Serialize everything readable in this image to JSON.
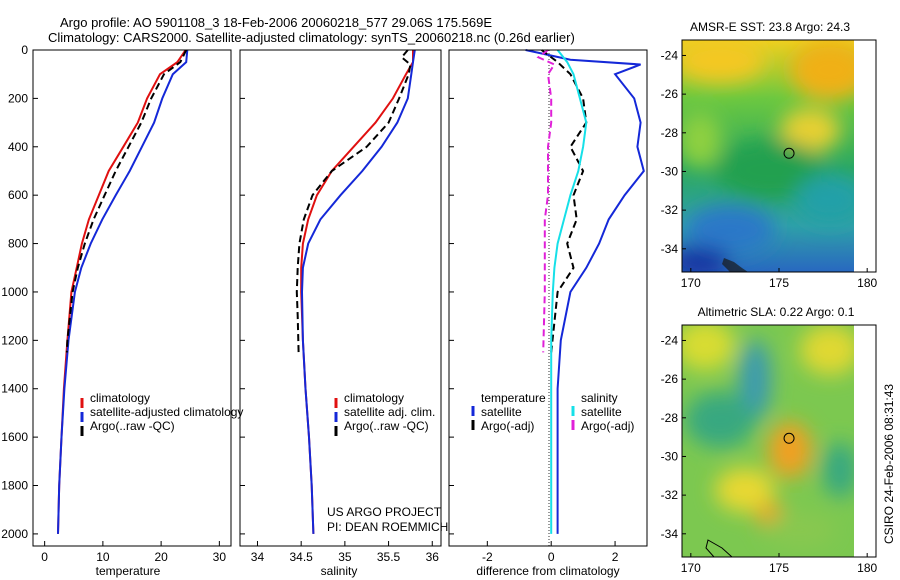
{
  "header": {
    "title_line1": "Argo profile: AO 5901108_3 18-Feb-2006 20060218_577 29.06S 175.569E",
    "title_line2": "Climatology: CARS2000. Satellite-adjusted climatology: synTS_20060218.nc (0.26d earlier)"
  },
  "side_label": "CSIRO 24-Feb-2006 08:31:43",
  "colors": {
    "climatology": "#e01010",
    "satellite": "#1428d8",
    "argo": "#000000",
    "sal_satellite": "#16e0e8",
    "sal_argo": "#e020d8"
  },
  "chart_data": [
    {
      "type": "line",
      "id": "temperature",
      "xlabel": "temperature",
      "xlim": [
        -2,
        32
      ],
      "ylim": [
        2050,
        0
      ],
      "xticks": [
        0,
        10,
        20,
        30
      ],
      "yticks": [
        0,
        200,
        400,
        600,
        800,
        1000,
        1200,
        1400,
        1600,
        1800,
        2000
      ],
      "legend": [
        "climatology",
        "satellite-adjusted climatology",
        "Argo(..raw -QC)"
      ],
      "series": [
        {
          "name": "climatology",
          "color": "#e01010",
          "x": [
            24.2,
            22.8,
            19.8,
            17.6,
            16.0,
            13.5,
            11.0,
            9.3,
            7.6,
            6.4,
            5.5,
            4.6,
            3.9,
            3.3,
            2.9,
            2.5,
            2.3
          ],
          "y": [
            0,
            50,
            100,
            200,
            300,
            400,
            500,
            600,
            700,
            800,
            900,
            1000,
            1200,
            1400,
            1600,
            1800,
            2000
          ]
        },
        {
          "name": "satellite-adjusted climatology",
          "color": "#1428d8",
          "x": [
            24.5,
            24.3,
            22.0,
            20.2,
            18.8,
            16.7,
            14.6,
            12.2,
            9.9,
            7.9,
            6.3,
            5.2,
            4.1,
            3.4,
            2.9,
            2.5,
            2.3
          ],
          "y": [
            0,
            50,
            100,
            200,
            300,
            400,
            500,
            600,
            700,
            800,
            900,
            1000,
            1200,
            1400,
            1600,
            1800,
            2000
          ]
        },
        {
          "name": "Argo(..raw -QC)",
          "color": "#000000",
          "dash": true,
          "x": [
            24.3,
            23.3,
            20.5,
            18.3,
            16.6,
            14.4,
            12.2,
            10.3,
            8.4,
            6.9,
            5.7,
            4.8,
            3.9,
            3.8
          ],
          "y": [
            0,
            50,
            100,
            200,
            300,
            400,
            500,
            600,
            700,
            800,
            900,
            1000,
            1200,
            1250
          ]
        }
      ]
    },
    {
      "type": "line",
      "id": "salinity",
      "xlabel": "salinity",
      "xlim": [
        33.8,
        36.1
      ],
      "ylim": [
        2050,
        0
      ],
      "xticks": [
        34,
        34.5,
        35,
        35.5,
        36
      ],
      "legend": [
        "climatology",
        "satellite adj. clim.",
        "Argo(..raw -QC)"
      ],
      "annotation": [
        "US ARGO PROJECT",
        "PI: DEAN ROEMMICH"
      ],
      "series": [
        {
          "name": "climatology",
          "color": "#e01010",
          "x": [
            35.78,
            35.78,
            35.7,
            35.55,
            35.35,
            35.1,
            34.85,
            34.68,
            34.58,
            34.52,
            34.5,
            34.5,
            34.52,
            34.55,
            34.59,
            34.62,
            34.64
          ],
          "y": [
            0,
            50,
            100,
            200,
            300,
            400,
            500,
            600,
            700,
            800,
            900,
            1000,
            1200,
            1400,
            1600,
            1800,
            2000
          ]
        },
        {
          "name": "satellite adj. clim.",
          "color": "#1428d8",
          "x": [
            35.8,
            35.78,
            35.76,
            35.72,
            35.6,
            35.42,
            35.2,
            34.95,
            34.72,
            34.58,
            34.52,
            34.51,
            34.52,
            34.55,
            34.59,
            34.62,
            34.64
          ],
          "y": [
            0,
            50,
            100,
            200,
            300,
            400,
            500,
            600,
            700,
            800,
            900,
            1000,
            1200,
            1400,
            1600,
            1800,
            2000
          ]
        },
        {
          "name": "Argo(..raw -QC)",
          "color": "#000000",
          "dash": true,
          "x": [
            35.72,
            35.65,
            35.75,
            35.73,
            35.62,
            35.5,
            35.25,
            34.85,
            34.63,
            34.53,
            34.48,
            34.46,
            34.45,
            34.46,
            34.47
          ],
          "y": [
            0,
            30,
            60,
            100,
            200,
            300,
            400,
            500,
            600,
            700,
            800,
            900,
            1000,
            1100,
            1250
          ]
        }
      ]
    },
    {
      "type": "line",
      "id": "difference",
      "xlabel": "difference from climatology",
      "xlim": [
        -3.2,
        3.0
      ],
      "ylim": [
        2050,
        0
      ],
      "xticks": [
        -2,
        0,
        2
      ],
      "legend_temperature": {
        "title": "temperature",
        "items": [
          "satellite",
          "Argo(-adj)"
        ]
      },
      "legend_salinity": {
        "title": "salinity",
        "items": [
          "satellite",
          "Argo(-adj)"
        ]
      },
      "series": [
        {
          "name": "temperature satellite",
          "color": "#1428d8",
          "x": [
            -0.8,
            0.6,
            2.8,
            2.0,
            2.6,
            2.8,
            2.7,
            2.9,
            2.3,
            1.8,
            1.5,
            1.1,
            0.6,
            0.3,
            0.2,
            0.2,
            0.2,
            0.2
          ],
          "y": [
            0,
            40,
            60,
            100,
            200,
            300,
            400,
            500,
            600,
            700,
            800,
            900,
            1000,
            1200,
            1400,
            1600,
            1800,
            2000
          ]
        },
        {
          "name": "temperature Argo(-adj)",
          "color": "#000000",
          "dash": true,
          "x": [
            -0.3,
            0.2,
            0.6,
            1.0,
            1.1,
            0.6,
            1.0,
            0.7,
            0.8,
            0.5,
            0.7,
            0.2,
            0.0
          ],
          "y": [
            0,
            50,
            100,
            200,
            300,
            400,
            500,
            600,
            700,
            800,
            900,
            1000,
            1250
          ]
        },
        {
          "name": "salinity satellite",
          "color": "#16e0e8",
          "x": [
            0.2,
            0.5,
            0.7,
            0.9,
            1.1,
            1.0,
            0.85,
            0.6,
            0.4,
            0.2,
            0.1,
            0.05,
            0.0,
            0.0,
            0.0,
            0.0,
            0.0
          ],
          "y": [
            0,
            50,
            100,
            200,
            300,
            400,
            500,
            600,
            700,
            800,
            900,
            1000,
            1200,
            1400,
            1600,
            1800,
            2000
          ]
        },
        {
          "name": "salinity Argo(-adj)",
          "color": "#e020d8",
          "dash": true,
          "x": [
            -0.1,
            -0.4,
            0.1,
            -0.1,
            0.0,
            0.0,
            -0.1,
            -0.1,
            -0.1,
            -0.2,
            -0.2,
            -0.2,
            -0.2,
            -0.25
          ],
          "y": [
            0,
            30,
            60,
            100,
            200,
            300,
            400,
            500,
            600,
            700,
            800,
            900,
            1000,
            1250
          ]
        }
      ]
    },
    {
      "type": "heatmap",
      "id": "sst_map",
      "title": "AMSR-E SST: 23.8 Argo: 24.3",
      "xlim": [
        169.5,
        180.5
      ],
      "ylim": [
        -35.2,
        -23.2
      ],
      "xticks": [
        170,
        175,
        180
      ],
      "yticks": [
        -24,
        -26,
        -28,
        -30,
        -32,
        -34
      ],
      "marker": {
        "lon": 175.57,
        "lat": -29.06
      }
    },
    {
      "type": "heatmap",
      "id": "sla_map",
      "title": "Altimetric SLA: 0.22 Argo: 0.1",
      "xlim": [
        169.5,
        180.5
      ],
      "ylim": [
        -35.2,
        -23.2
      ],
      "xticks": [
        170,
        175,
        180
      ],
      "yticks": [
        -24,
        -26,
        -28,
        -30,
        -32,
        -34
      ],
      "marker": {
        "lon": 175.57,
        "lat": -29.06
      }
    }
  ]
}
